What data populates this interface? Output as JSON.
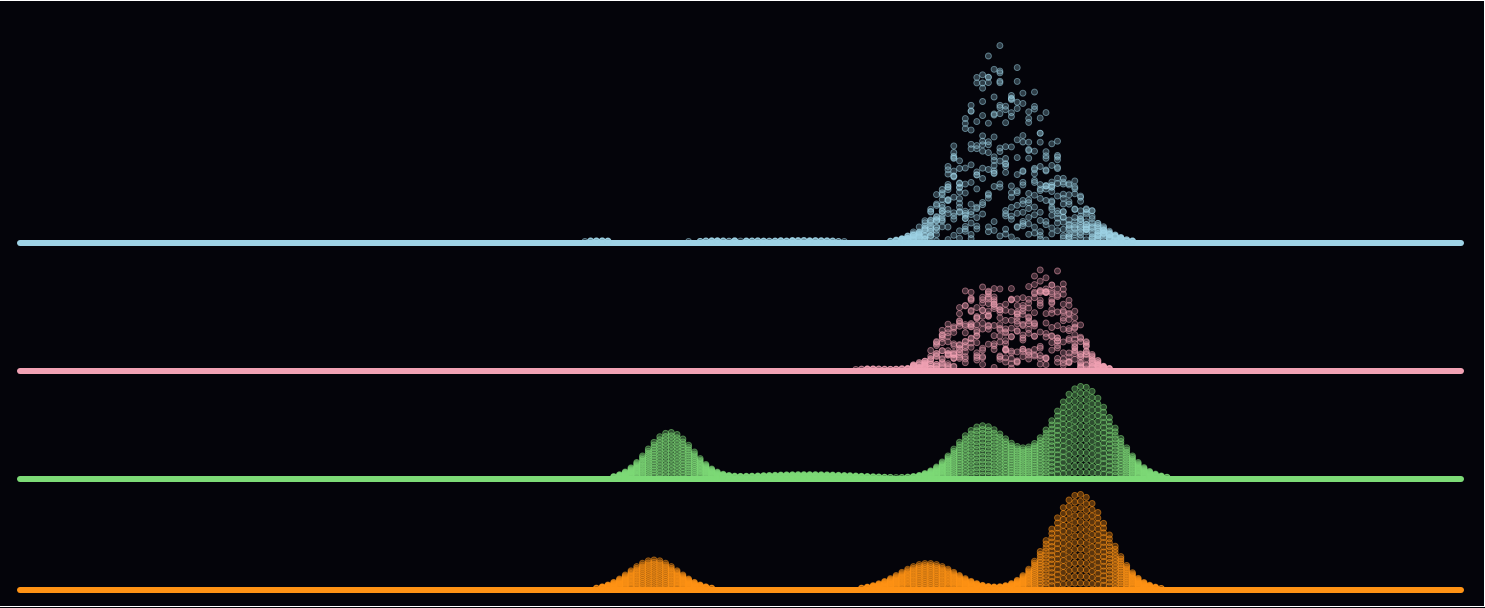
{
  "chart_data": {
    "type": "scatter",
    "xlim": [
      0,
      1
    ],
    "grid": false,
    "legend": "none",
    "series": [
      {
        "color": "#9fd3e6",
        "ymax": 1.0,
        "points_per_column": 14,
        "jitter": 0.85,
        "components": [
          {
            "center": 0.402,
            "height": 0.012,
            "width": 0.01
          },
          {
            "center": 0.482,
            "height": 0.01,
            "width": 0.022
          },
          {
            "center": 0.545,
            "height": 0.012,
            "width": 0.03
          },
          {
            "center": 0.67,
            "height": 0.68,
            "width": 0.022
          },
          {
            "center": 0.706,
            "height": 0.5,
            "width": 0.024
          }
        ]
      },
      {
        "color": "#f2a2b4",
        "ymax": 0.85,
        "points_per_column": 14,
        "jitter": 0.85,
        "components": [
          {
            "center": 0.455,
            "height": 0.008,
            "width": 0.03
          },
          {
            "center": 0.59,
            "height": 0.015,
            "width": 0.015
          },
          {
            "center": 0.662,
            "height": 0.6,
            "width": 0.018
          },
          {
            "center": 0.7,
            "height": 0.45,
            "width": 0.016
          },
          {
            "center": 0.722,
            "height": 0.52,
            "width": 0.013
          }
        ]
      },
      {
        "color": "#7ddb77",
        "ymax": 0.55,
        "points_per_column": 14,
        "jitter": 0.0,
        "components": [
          {
            "center": 0.451,
            "height": 0.26,
            "width": 0.016
          },
          {
            "center": 0.546,
            "height": 0.025,
            "width": 0.04
          },
          {
            "center": 0.667,
            "height": 0.29,
            "width": 0.018
          },
          {
            "center": 0.737,
            "height": 0.52,
            "width": 0.021
          },
          {
            "center": 0.69,
            "height": 0.02,
            "width": 0.015
          }
        ]
      },
      {
        "color": "#ff9315",
        "ymax": 0.85,
        "points_per_column": 14,
        "jitter": 0.0,
        "components": [
          {
            "center": 0.44,
            "height": 0.26,
            "width": 0.017
          },
          {
            "center": 0.63,
            "height": 0.23,
            "width": 0.02
          },
          {
            "center": 0.735,
            "height": 0.83,
            "width": 0.02
          }
        ]
      }
    ]
  }
}
